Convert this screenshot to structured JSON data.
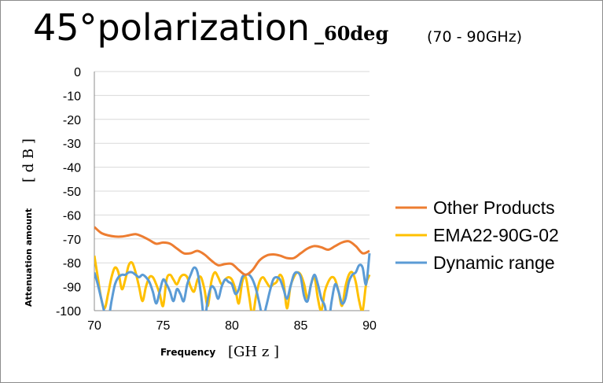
{
  "chart_data": {
    "type": "line",
    "title": "45°polarization",
    "title_suffix": "_60deg",
    "subtitle": "(70 - 90GHz)",
    "xlabel": "Frequency",
    "xunit": "[GH z ]",
    "ylabel": "Attenuation amount",
    "yunit": "[ d B ]",
    "xlim": [
      70,
      90
    ],
    "ylim": [
      -100,
      0
    ],
    "xticks": [
      70,
      75,
      80,
      85,
      90
    ],
    "yticks": [
      0,
      -10,
      -20,
      -30,
      -40,
      -50,
      -60,
      -70,
      -80,
      -90,
      -100
    ],
    "grid": "horizontal",
    "legend": "right",
    "series": [
      {
        "name": "Other Products",
        "color": "#ED7D31",
        "x": [
          70,
          70.5,
          71,
          71.5,
          72,
          72.5,
          73,
          73.5,
          74,
          74.5,
          75,
          75.5,
          76,
          76.5,
          77,
          77.5,
          78,
          78.5,
          79,
          79.5,
          80,
          80.5,
          81,
          81.5,
          82,
          82.5,
          83,
          83.5,
          84,
          84.5,
          85,
          85.5,
          86,
          86.5,
          87,
          87.5,
          88,
          88.5,
          89,
          89.5,
          90
        ],
        "values": [
          -65,
          -67.5,
          -68.5,
          -69,
          -69,
          -68.5,
          -68,
          -69,
          -70.5,
          -72,
          -71.5,
          -72,
          -74,
          -76,
          -76,
          -75,
          -76.5,
          -79,
          -81,
          -80.5,
          -80.5,
          -83,
          -85,
          -83,
          -79,
          -77,
          -76.5,
          -77,
          -78,
          -78,
          -76,
          -74,
          -73,
          -73.5,
          -74.5,
          -73,
          -71.5,
          -71,
          -73,
          -76,
          -75
        ]
      },
      {
        "name": "EMA22-90G-02",
        "color": "#FFC000",
        "x": [
          70,
          70.25,
          70.5,
          70.75,
          71,
          71.25,
          71.5,
          71.75,
          72,
          72.25,
          72.5,
          72.75,
          73,
          73.25,
          73.5,
          73.75,
          74,
          74.25,
          74.5,
          74.75,
          75,
          75.25,
          75.5,
          75.75,
          76,
          76.25,
          76.5,
          76.75,
          77,
          77.25,
          77.5,
          77.75,
          78,
          78.25,
          78.5,
          78.75,
          79,
          79.25,
          79.5,
          79.75,
          80,
          80.25,
          80.5,
          80.75,
          81,
          81.25,
          81.5,
          81.75,
          82,
          82.25,
          82.5,
          82.75,
          83,
          83.25,
          83.5,
          83.75,
          84,
          84.25,
          84.5,
          84.75,
          85,
          85.25,
          85.5,
          85.75,
          86,
          86.25,
          86.5,
          86.75,
          87,
          87.25,
          87.5,
          87.75,
          88,
          88.25,
          88.5,
          88.75,
          89,
          89.25,
          89.5,
          89.75,
          90
        ],
        "values": [
          -77,
          -86,
          -95,
          -99,
          -93,
          -86,
          -82,
          -84,
          -91,
          -87,
          -81,
          -80,
          -84,
          -90,
          -96,
          -90,
          -86,
          -86,
          -89,
          -93,
          -98,
          -87,
          -85,
          -87,
          -89,
          -86,
          -85,
          -86,
          -90,
          -92,
          -87,
          -86,
          -91,
          -98,
          -88,
          -84,
          -86,
          -89,
          -87,
          -86,
          -87,
          -91,
          -97,
          -88,
          -86,
          -94,
          -102,
          -94,
          -88,
          -86,
          -88,
          -90,
          -89,
          -88,
          -85,
          -88,
          -99,
          -90,
          -86,
          -84,
          -85,
          -89,
          -95,
          -89,
          -86,
          -95,
          -100,
          -92,
          -88,
          -86,
          -87,
          -92,
          -98,
          -90,
          -85,
          -84,
          -88,
          -96,
          -100,
          -89,
          -85
        ]
      },
      {
        "name": "Dynamic range",
        "color": "#5B9BD5",
        "x": [
          70,
          70.25,
          70.5,
          70.75,
          71,
          71.25,
          71.5,
          71.75,
          72,
          72.25,
          72.5,
          72.75,
          73,
          73.25,
          73.5,
          73.75,
          74,
          74.25,
          74.5,
          74.75,
          75,
          75.25,
          75.5,
          75.75,
          76,
          76.25,
          76.5,
          76.75,
          77,
          77.25,
          77.5,
          77.75,
          78,
          78.25,
          78.5,
          78.75,
          79,
          79.25,
          79.5,
          79.75,
          80,
          80.25,
          80.5,
          80.75,
          81,
          81.25,
          81.5,
          81.75,
          82,
          82.25,
          82.5,
          82.75,
          83,
          83.25,
          83.5,
          83.75,
          84,
          84.25,
          84.5,
          84.75,
          85,
          85.25,
          85.5,
          85.75,
          86,
          86.25,
          86.5,
          86.75,
          87,
          87.25,
          87.5,
          87.75,
          88,
          88.25,
          88.5,
          88.75,
          89,
          89.25,
          89.5,
          89.75,
          90
        ],
        "values": [
          -84,
          -89,
          -95,
          -101,
          -104,
          -96,
          -89,
          -86,
          -85,
          -85,
          -84,
          -84,
          -85,
          -86,
          -85,
          -86,
          -88,
          -92,
          -97,
          -92,
          -87,
          -89,
          -92,
          -96,
          -91,
          -93,
          -96,
          -89,
          -85,
          -82,
          -84,
          -93,
          -104,
          -95,
          -90,
          -91,
          -95,
          -90,
          -87,
          -88,
          -89,
          -93,
          -91,
          -86,
          -85,
          -85,
          -87,
          -91,
          -97,
          -103,
          -98,
          -92,
          -87,
          -86,
          -87,
          -91,
          -95,
          -90,
          -85,
          -84,
          -86,
          -94,
          -96,
          -89,
          -85,
          -89,
          -95,
          -98,
          -105,
          -96,
          -89,
          -92,
          -97,
          -95,
          -88,
          -85,
          -84,
          -81,
          -82,
          -89,
          -76
        ]
      }
    ]
  }
}
